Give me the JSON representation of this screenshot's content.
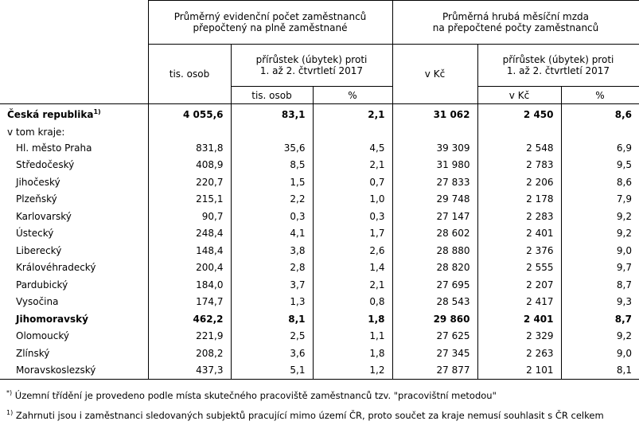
{
  "header": {
    "groups": [
      {
        "lines": [
          "Průměrný evidenční počet zaměstnanců",
          "přepočtený na plně zaměstnané"
        ],
        "main": "tis. osob",
        "change_lines": [
          "přírůstek (úbytek) proti",
          "1. až 2. čtvrtletí 2017"
        ],
        "units": [
          "tis. osob",
          "%"
        ]
      },
      {
        "lines": [
          "Průměrná hrubá měsíční mzda",
          "na přepočtené počty zaměstnanců"
        ],
        "main": "v Kč",
        "change_lines": [
          "přírůstek (úbytek) proti",
          "1. až 2. čtvrtletí 2017"
        ],
        "units": [
          "v Kč",
          "%"
        ]
      }
    ]
  },
  "table": {
    "total": {
      "label": "Česká republika",
      "sup": "1)",
      "values": [
        "4 055,6",
        "83,1",
        "2,1",
        "31 062",
        "2 450",
        "8,6"
      ]
    },
    "group_label": "v tom kraje:",
    "regions": [
      {
        "label": "Hl. město Praha",
        "values": [
          "831,8",
          "35,6",
          "4,5",
          "39 309",
          "2 548",
          "6,9"
        ]
      },
      {
        "label": "Středočeský",
        "values": [
          "408,9",
          "8,5",
          "2,1",
          "31 980",
          "2 783",
          "9,5"
        ]
      },
      {
        "label": "Jihočeský",
        "values": [
          "220,7",
          "1,5",
          "0,7",
          "27 833",
          "2 206",
          "8,6"
        ]
      },
      {
        "label": "Plzeňský",
        "values": [
          "215,1",
          "2,2",
          "1,0",
          "29 748",
          "2 178",
          "7,9"
        ]
      },
      {
        "label": "Karlovarský",
        "values": [
          "90,7",
          "0,3",
          "0,3",
          "27 147",
          "2 283",
          "9,2"
        ]
      },
      {
        "label": "Ústecký",
        "values": [
          "248,4",
          "4,1",
          "1,7",
          "28 602",
          "2 401",
          "9,2"
        ]
      },
      {
        "label": "Liberecký",
        "values": [
          "148,4",
          "3,8",
          "2,6",
          "28 880",
          "2 376",
          "9,0"
        ]
      },
      {
        "label": "Královéhradecký",
        "values": [
          "200,4",
          "2,8",
          "1,4",
          "28 820",
          "2 555",
          "9,7"
        ]
      },
      {
        "label": "Pardubický",
        "values": [
          "184,0",
          "3,7",
          "2,1",
          "27 695",
          "2 207",
          "8,7"
        ]
      },
      {
        "label": "Vysočina",
        "values": [
          "174,7",
          "1,3",
          "0,8",
          "28 543",
          "2 417",
          "9,3"
        ]
      },
      {
        "label": "Jihomoravský",
        "bold": true,
        "values": [
          "462,2",
          "8,1",
          "1,8",
          "29 860",
          "2 401",
          "8,7"
        ]
      },
      {
        "label": "Olomoucký",
        "values": [
          "221,9",
          "2,5",
          "1,1",
          "27 625",
          "2 329",
          "9,2"
        ]
      },
      {
        "label": "Zlínský",
        "values": [
          "208,2",
          "3,6",
          "1,8",
          "27 345",
          "2 263",
          "9,0"
        ]
      },
      {
        "label": "Moravskoslezský",
        "values": [
          "437,3",
          "5,1",
          "1,2",
          "27 877",
          "2 101",
          "8,1"
        ]
      }
    ]
  },
  "footnotes": [
    {
      "mark": "*)",
      "text": "Územní třídění je  provedeno  podle  místa skutečného pracoviště zaměstnanců tzv. \"pracovištní metodou\""
    },
    {
      "mark": "1)",
      "text": "Zahrnuti jsou i zaměstnanci sledovaných subjektů pracující mimo území ČR, proto součet za kraje nemusí souhlasit s ČR celkem"
    }
  ]
}
